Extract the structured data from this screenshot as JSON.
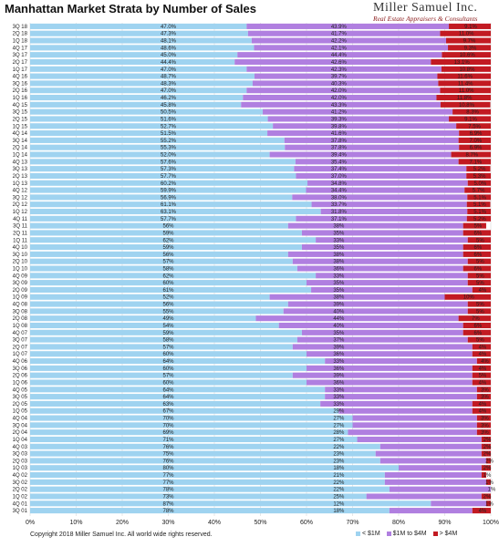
{
  "header": {
    "title": "Manhattan Market Strata by Number of Sales",
    "brand_name": "Miller Samuel Inc.",
    "brand_sub": "Real Estate Appraisers & Consultants"
  },
  "footer": {
    "copyright": "Copyright 2018 Miller Samuel Inc.  All world wide rights reserved."
  },
  "colors": {
    "under_1m": "#9fd3f0",
    "mid": "#b07fe0",
    "over_4m": "#c21a22"
  },
  "chart_data": {
    "type": "bar",
    "orientation": "horizontal",
    "stacked": true,
    "title": "Manhattan Market Strata by Number of Sales",
    "xlim": [
      0,
      100
    ],
    "x_ticks": [
      "0%",
      "10%",
      "20%",
      "30%",
      "40%",
      "50%",
      "60%",
      "70%",
      "80%",
      "90%",
      "100%"
    ],
    "legend_position": "bottom-right",
    "categories": [
      "3Q 18",
      "2Q 18",
      "1Q 18",
      "4Q 17",
      "3Q 17",
      "2Q 17",
      "1Q 17",
      "4Q 16",
      "3Q 16",
      "2Q 16",
      "1Q 16",
      "4Q 15",
      "3Q 15",
      "2Q 15",
      "1Q 15",
      "4Q 14",
      "3Q 14",
      "2Q 14",
      "1Q 14",
      "4Q 13",
      "3Q 13",
      "2Q 13",
      "1Q 13",
      "4Q 12",
      "3Q 12",
      "2Q 12",
      "1Q 12",
      "4Q 11",
      "3Q 11",
      "2Q 11",
      "1Q 11",
      "4Q 10",
      "3Q 10",
      "2Q 10",
      "1Q 10",
      "4Q 09",
      "3Q 09",
      "2Q 09",
      "1Q 09",
      "4Q 08",
      "3Q 08",
      "2Q 08",
      "1Q 08",
      "4Q 07",
      "3Q 07",
      "2Q 07",
      "1Q 07",
      "4Q 06",
      "3Q 06",
      "2Q 06",
      "1Q 06",
      "4Q 05",
      "3Q 05",
      "2Q 05",
      "1Q 05",
      "4Q 04",
      "3Q 04",
      "2Q 04",
      "1Q 04",
      "4Q 03",
      "3Q 03",
      "2Q 03",
      "1Q 03",
      "4Q 02",
      "3Q 02",
      "2Q 02",
      "1Q 02",
      "4Q 01",
      "3Q 01"
    ],
    "series": [
      {
        "name": "< $1M",
        "color": "#9fd3f0",
        "values": [
          47.0,
          47.3,
          48.1,
          48.6,
          45.0,
          44.4,
          47.0,
          48.7,
          48.3,
          47.0,
          46.2,
          45.8,
          50.5,
          51.6,
          52.7,
          51.5,
          55.2,
          55.3,
          52.0,
          57.6,
          57.3,
          57.7,
          60.2,
          59.9,
          56.9,
          61.1,
          63.1,
          57.7,
          56,
          59,
          62,
          59,
          56,
          57,
          58,
          62,
          60,
          61,
          52,
          56,
          55,
          49,
          54,
          59,
          58,
          57,
          60,
          64,
          60,
          57,
          60,
          64,
          64,
          63,
          67,
          70,
          70,
          69,
          71,
          76,
          75,
          76,
          80,
          77,
          77,
          78,
          73,
          87,
          78
        ],
        "labels": [
          "47.0%",
          "47.3%",
          "48.1%",
          "48.6%",
          "45.0%",
          "44.4%",
          "47.0%",
          "48.7%",
          "48.3%",
          "47.0%",
          "46.2%",
          "45.8%",
          "50.5%",
          "51.6%",
          "52.7%",
          "51.5%",
          "55.2%",
          "55.3%",
          "52.0%",
          "57.6%",
          "57.3%",
          "57.7%",
          "60.2%",
          "59.9%",
          "56.9%",
          "61.1%",
          "63.1%",
          "57.7%",
          "56%",
          "59%",
          "62%",
          "59%",
          "56%",
          "57%",
          "58%",
          "62%",
          "60%",
          "61%",
          "52%",
          "56%",
          "55%",
          "49%",
          "54%",
          "59%",
          "58%",
          "57%",
          "60%",
          "64%",
          "60%",
          "57%",
          "60%",
          "64%",
          "64%",
          "63%",
          "67%",
          "70%",
          "70%",
          "69%",
          "71%",
          "76%",
          "75%",
          "76%",
          "80%",
          "77%",
          "77%",
          "78%",
          "73%",
          "87%",
          "78%"
        ]
      },
      {
        "name": "$1M to $4M",
        "color": "#b07fe0",
        "values": [
          43.9,
          41.7,
          42.2,
          42.1,
          44.4,
          42.6,
          42.3,
          39.7,
          40.3,
          42.0,
          42.0,
          43.3,
          41.2,
          39.3,
          39.8,
          41.6,
          37.8,
          37.8,
          39.4,
          35.4,
          37.4,
          37.0,
          34.8,
          34.4,
          38.0,
          33.7,
          31.8,
          37.1,
          38,
          35,
          33,
          35,
          38,
          38,
          36,
          33,
          35,
          35,
          38,
          39,
          40,
          44,
          40,
          35,
          37,
          39,
          36,
          33,
          36,
          39,
          36,
          33,
          33,
          33,
          29,
          27,
          27,
          28,
          27,
          22,
          23,
          23,
          18,
          21,
          22,
          22,
          25,
          12,
          18
        ],
        "labels": [
          "43.9%",
          "41.7%",
          "42.2%",
          "42.1%",
          "44.4%",
          "42.6%",
          "42.3%",
          "39.7%",
          "40.3%",
          "42.0%",
          "42.0%",
          "43.3%",
          "41.2%",
          "39.3%",
          "39.8%",
          "41.6%",
          "37.8%",
          "37.8%",
          "39.4%",
          "35.4%",
          "37.4%",
          "37.0%",
          "34.8%",
          "34.4%",
          "38.0%",
          "33.7%",
          "31.8%",
          "37.1%",
          "38%",
          "35%",
          "33%",
          "35%",
          "38%",
          "38%",
          "36%",
          "33%",
          "35%",
          "35%",
          "38%",
          "39%",
          "40%",
          "44%",
          "40%",
          "35%",
          "37%",
          "39%",
          "36%",
          "33%",
          "36%",
          "39%",
          "36%",
          "33%",
          "33%",
          "33%",
          "29%",
          "27%",
          "27%",
          "28%",
          "27%",
          "22%",
          "23%",
          "23%",
          "18%",
          "21%",
          "22%",
          "22%",
          "25%",
          "12%",
          "18%"
        ]
      },
      {
        "name": "> $4M",
        "color": "#c21a22",
        "values": [
          9.1,
          11.0,
          9.7,
          9.3,
          10.6,
          13.1,
          10.8,
          11.6,
          11.4,
          11.0,
          11.8,
          10.8,
          8.3,
          9.1,
          7.5,
          6.9,
          7.0,
          6.9,
          8.7,
          7.1,
          5.2,
          5.3,
          5.0,
          5.7,
          5.1,
          5.1,
          5.1,
          5.2,
          5,
          6,
          5,
          6,
          6,
          5,
          6,
          5,
          5,
          4,
          10,
          5,
          5,
          7,
          6,
          6,
          5,
          4,
          4,
          4,
          4,
          5,
          4,
          3,
          3,
          4,
          4,
          3,
          3,
          3,
          2,
          2,
          2,
          2,
          2,
          1,
          1,
          1,
          2,
          1,
          4
        ],
        "labels": [
          "9.1%",
          "11.0%",
          "9.7%",
          "9.3%",
          "10.6%",
          "13.1%",
          "10.8%",
          "11.6%",
          "11.4%",
          "11.0%",
          "11.8%",
          "10.8%",
          "8.3%",
          "9.1%",
          "7.5%",
          "6.9%",
          "7.0%",
          "6.9%",
          "8.7%",
          "7.1%",
          "5.2%",
          "5.3%",
          "5.0%",
          "5.7%",
          "5.1%",
          "5.1%",
          "5.1%",
          "5.2%",
          "5%",
          "6%",
          "5%",
          "6%",
          "6%",
          "5%",
          "6%",
          "5%",
          "5%",
          "4%",
          "10%",
          "5%",
          "5%",
          "7%",
          "6%",
          "6%",
          "5%",
          "4%",
          "4%",
          "4%",
          "4%",
          "5%",
          "4%",
          "3%",
          "3%",
          "4%",
          "4%",
          "3%",
          "3%",
          "3%",
          "2%",
          "2%",
          "2%",
          "2%",
          "2%",
          "1%",
          "1%",
          "1%",
          "2%",
          "1%",
          "4%"
        ]
      }
    ]
  }
}
